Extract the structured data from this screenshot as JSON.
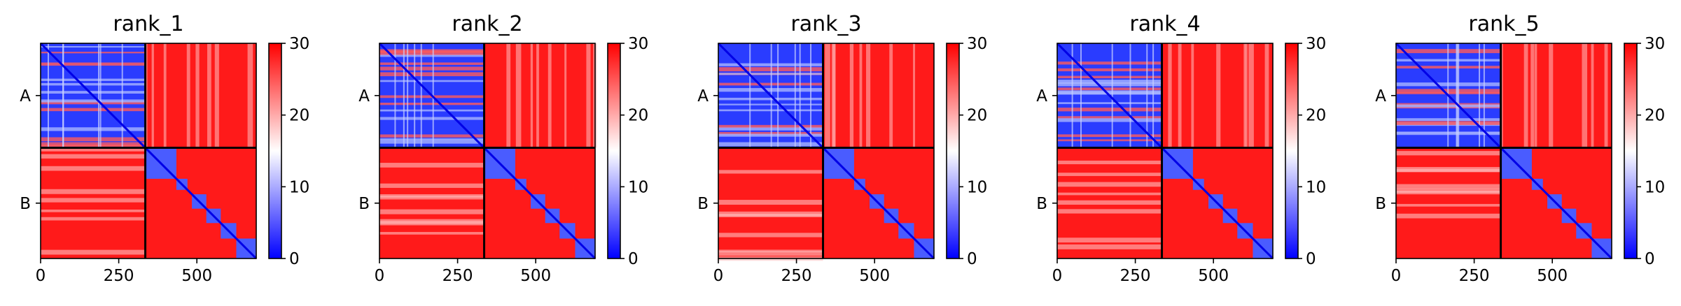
{
  "chart_data": [
    {
      "type": "heatmap",
      "title": "rank_1",
      "chains": [
        "A",
        "B"
      ],
      "chain_boundary": 335,
      "x_ticks": [
        0,
        250,
        500
      ],
      "xlim": [
        0,
        690
      ],
      "colorbar": {
        "ticks": [
          0,
          10,
          20,
          30
        ],
        "range": [
          0,
          30
        ],
        "colors": [
          "#0000ff",
          "#ffffff",
          "#ff0000"
        ]
      }
    },
    {
      "type": "heatmap",
      "title": "rank_2",
      "chains": [
        "A",
        "B"
      ],
      "chain_boundary": 335,
      "x_ticks": [
        0,
        250,
        500
      ],
      "xlim": [
        0,
        690
      ],
      "colorbar": {
        "ticks": [
          0,
          10,
          20,
          30
        ],
        "range": [
          0,
          30
        ],
        "colors": [
          "#0000ff",
          "#ffffff",
          "#ff0000"
        ]
      }
    },
    {
      "type": "heatmap",
      "title": "rank_3",
      "chains": [
        "A",
        "B"
      ],
      "chain_boundary": 335,
      "x_ticks": [
        0,
        250,
        500
      ],
      "xlim": [
        0,
        690
      ],
      "colorbar": {
        "ticks": [
          0,
          10,
          20,
          30
        ],
        "range": [
          0,
          30
        ],
        "colors": [
          "#0000ff",
          "#ffffff",
          "#ff0000"
        ]
      }
    },
    {
      "type": "heatmap",
      "title": "rank_4",
      "chains": [
        "A",
        "B"
      ],
      "chain_boundary": 335,
      "x_ticks": [
        0,
        250,
        500
      ],
      "xlim": [
        0,
        690
      ],
      "colorbar": {
        "ticks": [
          0,
          10,
          20,
          30
        ],
        "range": [
          0,
          30
        ],
        "colors": [
          "#0000ff",
          "#ffffff",
          "#ff0000"
        ]
      }
    },
    {
      "type": "heatmap",
      "title": "rank_5",
      "chains": [
        "A",
        "B"
      ],
      "chain_boundary": 335,
      "x_ticks": [
        0,
        250,
        500
      ],
      "xlim": [
        0,
        690
      ],
      "colorbar": {
        "ticks": [
          0,
          10,
          20,
          30
        ],
        "range": [
          0,
          30
        ],
        "colors": [
          "#0000ff",
          "#ffffff",
          "#ff0000"
        ]
      }
    }
  ]
}
